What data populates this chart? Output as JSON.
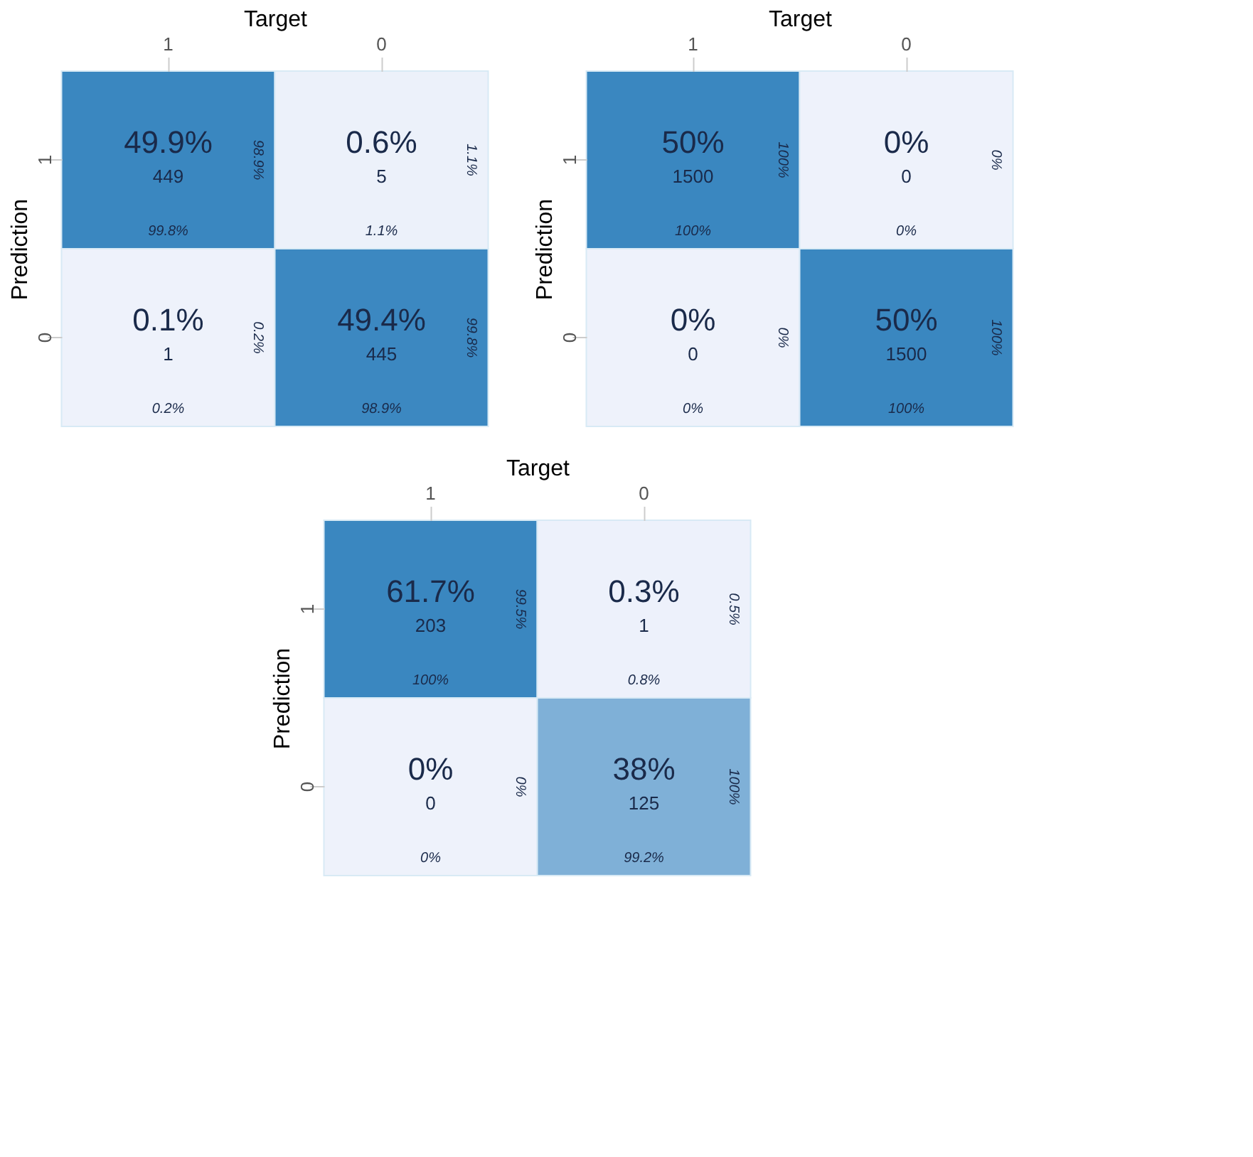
{
  "chart_data": [
    {
      "type": "heatmap",
      "xlabel": "Target",
      "ylabel": "Prediction",
      "categories": [
        "1",
        "0"
      ],
      "y_categories": [
        "1",
        "0"
      ],
      "cells": [
        [
          49.9,
          0.6
        ],
        [
          0.1,
          49.4
        ]
      ],
      "cell_labels": [
        [
          "49.9%",
          "0.6%"
        ],
        [
          "0.1%",
          "49.4%"
        ]
      ],
      "colors": [
        "#eef2fb",
        "#3a87c0"
      ],
      "grid": false,
      "annotations": [
        "449",
        "5",
        "1",
        "445",
        "99.8%",
        "1.1%",
        "0.2%",
        "98.9%",
        "98.9%",
        "1.1%",
        "0.2%",
        "99.8%"
      ]
    },
    {
      "type": "heatmap",
      "xlabel": "Target",
      "ylabel": "Prediction",
      "categories": [
        "1",
        "0"
      ],
      "y_categories": [
        "1",
        "0"
      ],
      "cells": [
        [
          50,
          0
        ],
        [
          0,
          50
        ]
      ],
      "cell_labels": [
        [
          "50%",
          "0%"
        ],
        [
          "0%",
          "50%"
        ]
      ],
      "colors": [
        "#eef2fb",
        "#3a87c0"
      ],
      "grid": false,
      "annotations": [
        "1500",
        "0",
        "0",
        "1500",
        "100%",
        "0%",
        "0%",
        "100%",
        "100%",
        "0%",
        "0%",
        "100%"
      ]
    },
    {
      "type": "heatmap",
      "xlabel": "Target",
      "ylabel": "Prediction",
      "categories": [
        "1",
        "0"
      ],
      "y_categories": [
        "1",
        "0"
      ],
      "cells": [
        [
          61.7,
          0.3
        ],
        [
          0,
          38
        ]
      ],
      "cell_labels": [
        [
          "61.7%",
          "0.3%"
        ],
        [
          "0%",
          "38%"
        ]
      ],
      "colors": [
        "#eef2fb",
        "#3a87c0"
      ],
      "grid": false,
      "annotations": [
        "203",
        "1",
        "0",
        "125",
        "100%",
        "0.8%",
        "0%",
        "99.2%",
        "99.5%",
        "0.5%",
        "0%",
        "100%"
      ]
    }
  ]
}
